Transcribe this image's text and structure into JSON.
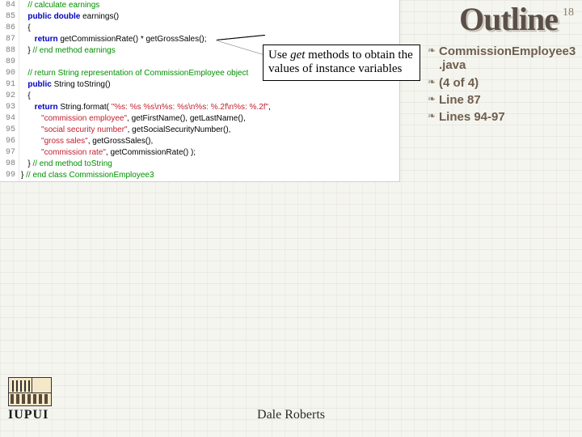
{
  "slide": {
    "title": "Outline",
    "number": "18",
    "author": "Dale Roberts"
  },
  "callout": {
    "t1": "Use ",
    "t2": "get",
    "t3": " methods to obtain the values of instance variables"
  },
  "outline": {
    "items": [
      "CommissionEmployee3.java",
      "(4 of 4)",
      "Line 87",
      "Lines 94-97"
    ]
  },
  "logo": {
    "text": "IUPUI"
  },
  "code": {
    "colors": {
      "comment": "#009000",
      "keyword": "#0000c0",
      "string": "#c02030",
      "default": "#000000",
      "lineno": "#808080",
      "bg": "#ffffff"
    },
    "font_family": "Verdana",
    "font_size_pt": 8,
    "lines": [
      {
        "n": 84,
        "tokens": [
          {
            "t": "   ",
            "c": "d"
          },
          {
            "t": "// calculate earnings",
            "c": "comment"
          }
        ]
      },
      {
        "n": 85,
        "tokens": [
          {
            "t": "   ",
            "c": "d"
          },
          {
            "t": "public double",
            "c": "kw"
          },
          {
            "t": " earnings()",
            "c": "d"
          }
        ]
      },
      {
        "n": 86,
        "tokens": [
          {
            "t": "   {",
            "c": "d"
          }
        ]
      },
      {
        "n": 87,
        "tokens": [
          {
            "t": "      ",
            "c": "d"
          },
          {
            "t": "return",
            "c": "kw"
          },
          {
            "t": " getCommissionRate() * getGrossSales();",
            "c": "d"
          }
        ]
      },
      {
        "n": 88,
        "tokens": [
          {
            "t": "   } ",
            "c": "d"
          },
          {
            "t": "// end method earnings",
            "c": "comment"
          }
        ]
      },
      {
        "n": 89,
        "tokens": []
      },
      {
        "n": 90,
        "tokens": [
          {
            "t": "   ",
            "c": "d"
          },
          {
            "t": "// return String representation of CommissionEmployee object",
            "c": "comment"
          }
        ]
      },
      {
        "n": 91,
        "tokens": [
          {
            "t": "   ",
            "c": "d"
          },
          {
            "t": "public",
            "c": "kw"
          },
          {
            "t": " String toString()",
            "c": "d"
          }
        ]
      },
      {
        "n": 92,
        "tokens": [
          {
            "t": "   {",
            "c": "d"
          }
        ]
      },
      {
        "n": 93,
        "tokens": [
          {
            "t": "      ",
            "c": "d"
          },
          {
            "t": "return",
            "c": "kw"
          },
          {
            "t": " String.format( ",
            "c": "d"
          },
          {
            "t": "\"%s: %s %s\\n%s: %s\\n%s: %.2f\\n%s: %.2f\"",
            "c": "str"
          },
          {
            "t": ",",
            "c": "d"
          }
        ]
      },
      {
        "n": 94,
        "tokens": [
          {
            "t": "         ",
            "c": "d"
          },
          {
            "t": "\"commission employee\"",
            "c": "str"
          },
          {
            "t": ", getFirstName(), getLastName(),",
            "c": "d"
          }
        ]
      },
      {
        "n": 95,
        "tokens": [
          {
            "t": "         ",
            "c": "d"
          },
          {
            "t": "\"social security number\"",
            "c": "str"
          },
          {
            "t": ", getSocialSecurityNumber(),",
            "c": "d"
          }
        ]
      },
      {
        "n": 96,
        "tokens": [
          {
            "t": "         ",
            "c": "d"
          },
          {
            "t": "\"gross sales\"",
            "c": "str"
          },
          {
            "t": ", getGrossSales(),",
            "c": "d"
          }
        ]
      },
      {
        "n": 97,
        "tokens": [
          {
            "t": "         ",
            "c": "d"
          },
          {
            "t": "\"commission rate\"",
            "c": "str"
          },
          {
            "t": ", getCommissionRate() );",
            "c": "d"
          }
        ]
      },
      {
        "n": 98,
        "tokens": [
          {
            "t": "   } ",
            "c": "d"
          },
          {
            "t": "// end method toString",
            "c": "comment"
          }
        ]
      },
      {
        "n": 99,
        "tokens": [
          {
            "t": "} ",
            "c": "d"
          },
          {
            "t": "// end class CommissionEmployee3",
            "c": "comment"
          }
        ]
      }
    ]
  }
}
